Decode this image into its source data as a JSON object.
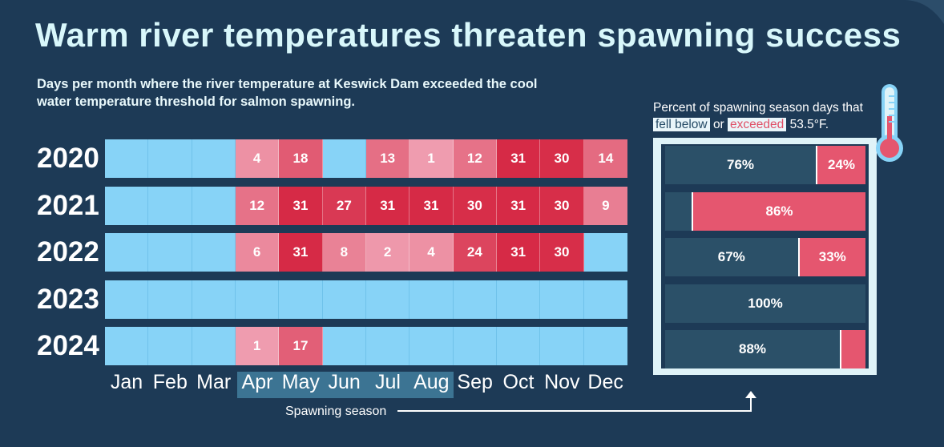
{
  "title": "Warm river temperatures threaten spawning success",
  "subtitle": "Days per month where the river temperature at Keswick Dam exceeded the cool water temperature threshold for salmon spawning.",
  "legend": {
    "line1": "Percent of spawning season days that",
    "below_label": "fell below",
    "or_label": "or",
    "exceed_label": "exceeded",
    "threshold_label": "53.5°F."
  },
  "spawning_label": "Spawning season",
  "colors": {
    "background": "#1d3a56",
    "cool": "#87d3f7",
    "below": "#2b5068",
    "exceed": "#e5566f",
    "grid_line": "#ffffff"
  },
  "chart_data": [
    {
      "type": "heatmap",
      "title": "Warm river temperatures threaten spawning success",
      "months": [
        "Jan",
        "Feb",
        "Mar",
        "Apr",
        "May",
        "Jun",
        "Jul",
        "Aug",
        "Sep",
        "Oct",
        "Nov",
        "Dec"
      ],
      "spawning_months": [
        "Apr",
        "May",
        "Jun",
        "Jul",
        "Aug"
      ],
      "years": [
        "2020",
        "2021",
        "2022",
        "2023",
        "2024"
      ],
      "values": [
        [
          0,
          0,
          0,
          4,
          18,
          0,
          13,
          1,
          12,
          31,
          30,
          14
        ],
        [
          0,
          0,
          0,
          12,
          31,
          27,
          31,
          31,
          30,
          31,
          30,
          9
        ],
        [
          0,
          0,
          0,
          6,
          31,
          8,
          2,
          4,
          24,
          31,
          30,
          0
        ],
        [
          0,
          0,
          0,
          0,
          0,
          0,
          0,
          0,
          0,
          0,
          0,
          0
        ],
        [
          0,
          0,
          0,
          1,
          17,
          null,
          null,
          null,
          null,
          null,
          null,
          null
        ]
      ]
    },
    {
      "type": "bar",
      "stacked": true,
      "orientation": "horizontal",
      "categories": [
        "2020",
        "2021",
        "2022",
        "2023",
        "2024"
      ],
      "series": [
        {
          "name": "fell below",
          "values": [
            76,
            14,
            67,
            100,
            88
          ],
          "labels": [
            "76%",
            "",
            "67%",
            "100%",
            "88%"
          ]
        },
        {
          "name": "exceeded",
          "values": [
            24,
            86,
            33,
            0,
            12
          ],
          "labels": [
            "24%",
            "86%",
            "33%",
            "",
            ""
          ]
        }
      ]
    }
  ]
}
